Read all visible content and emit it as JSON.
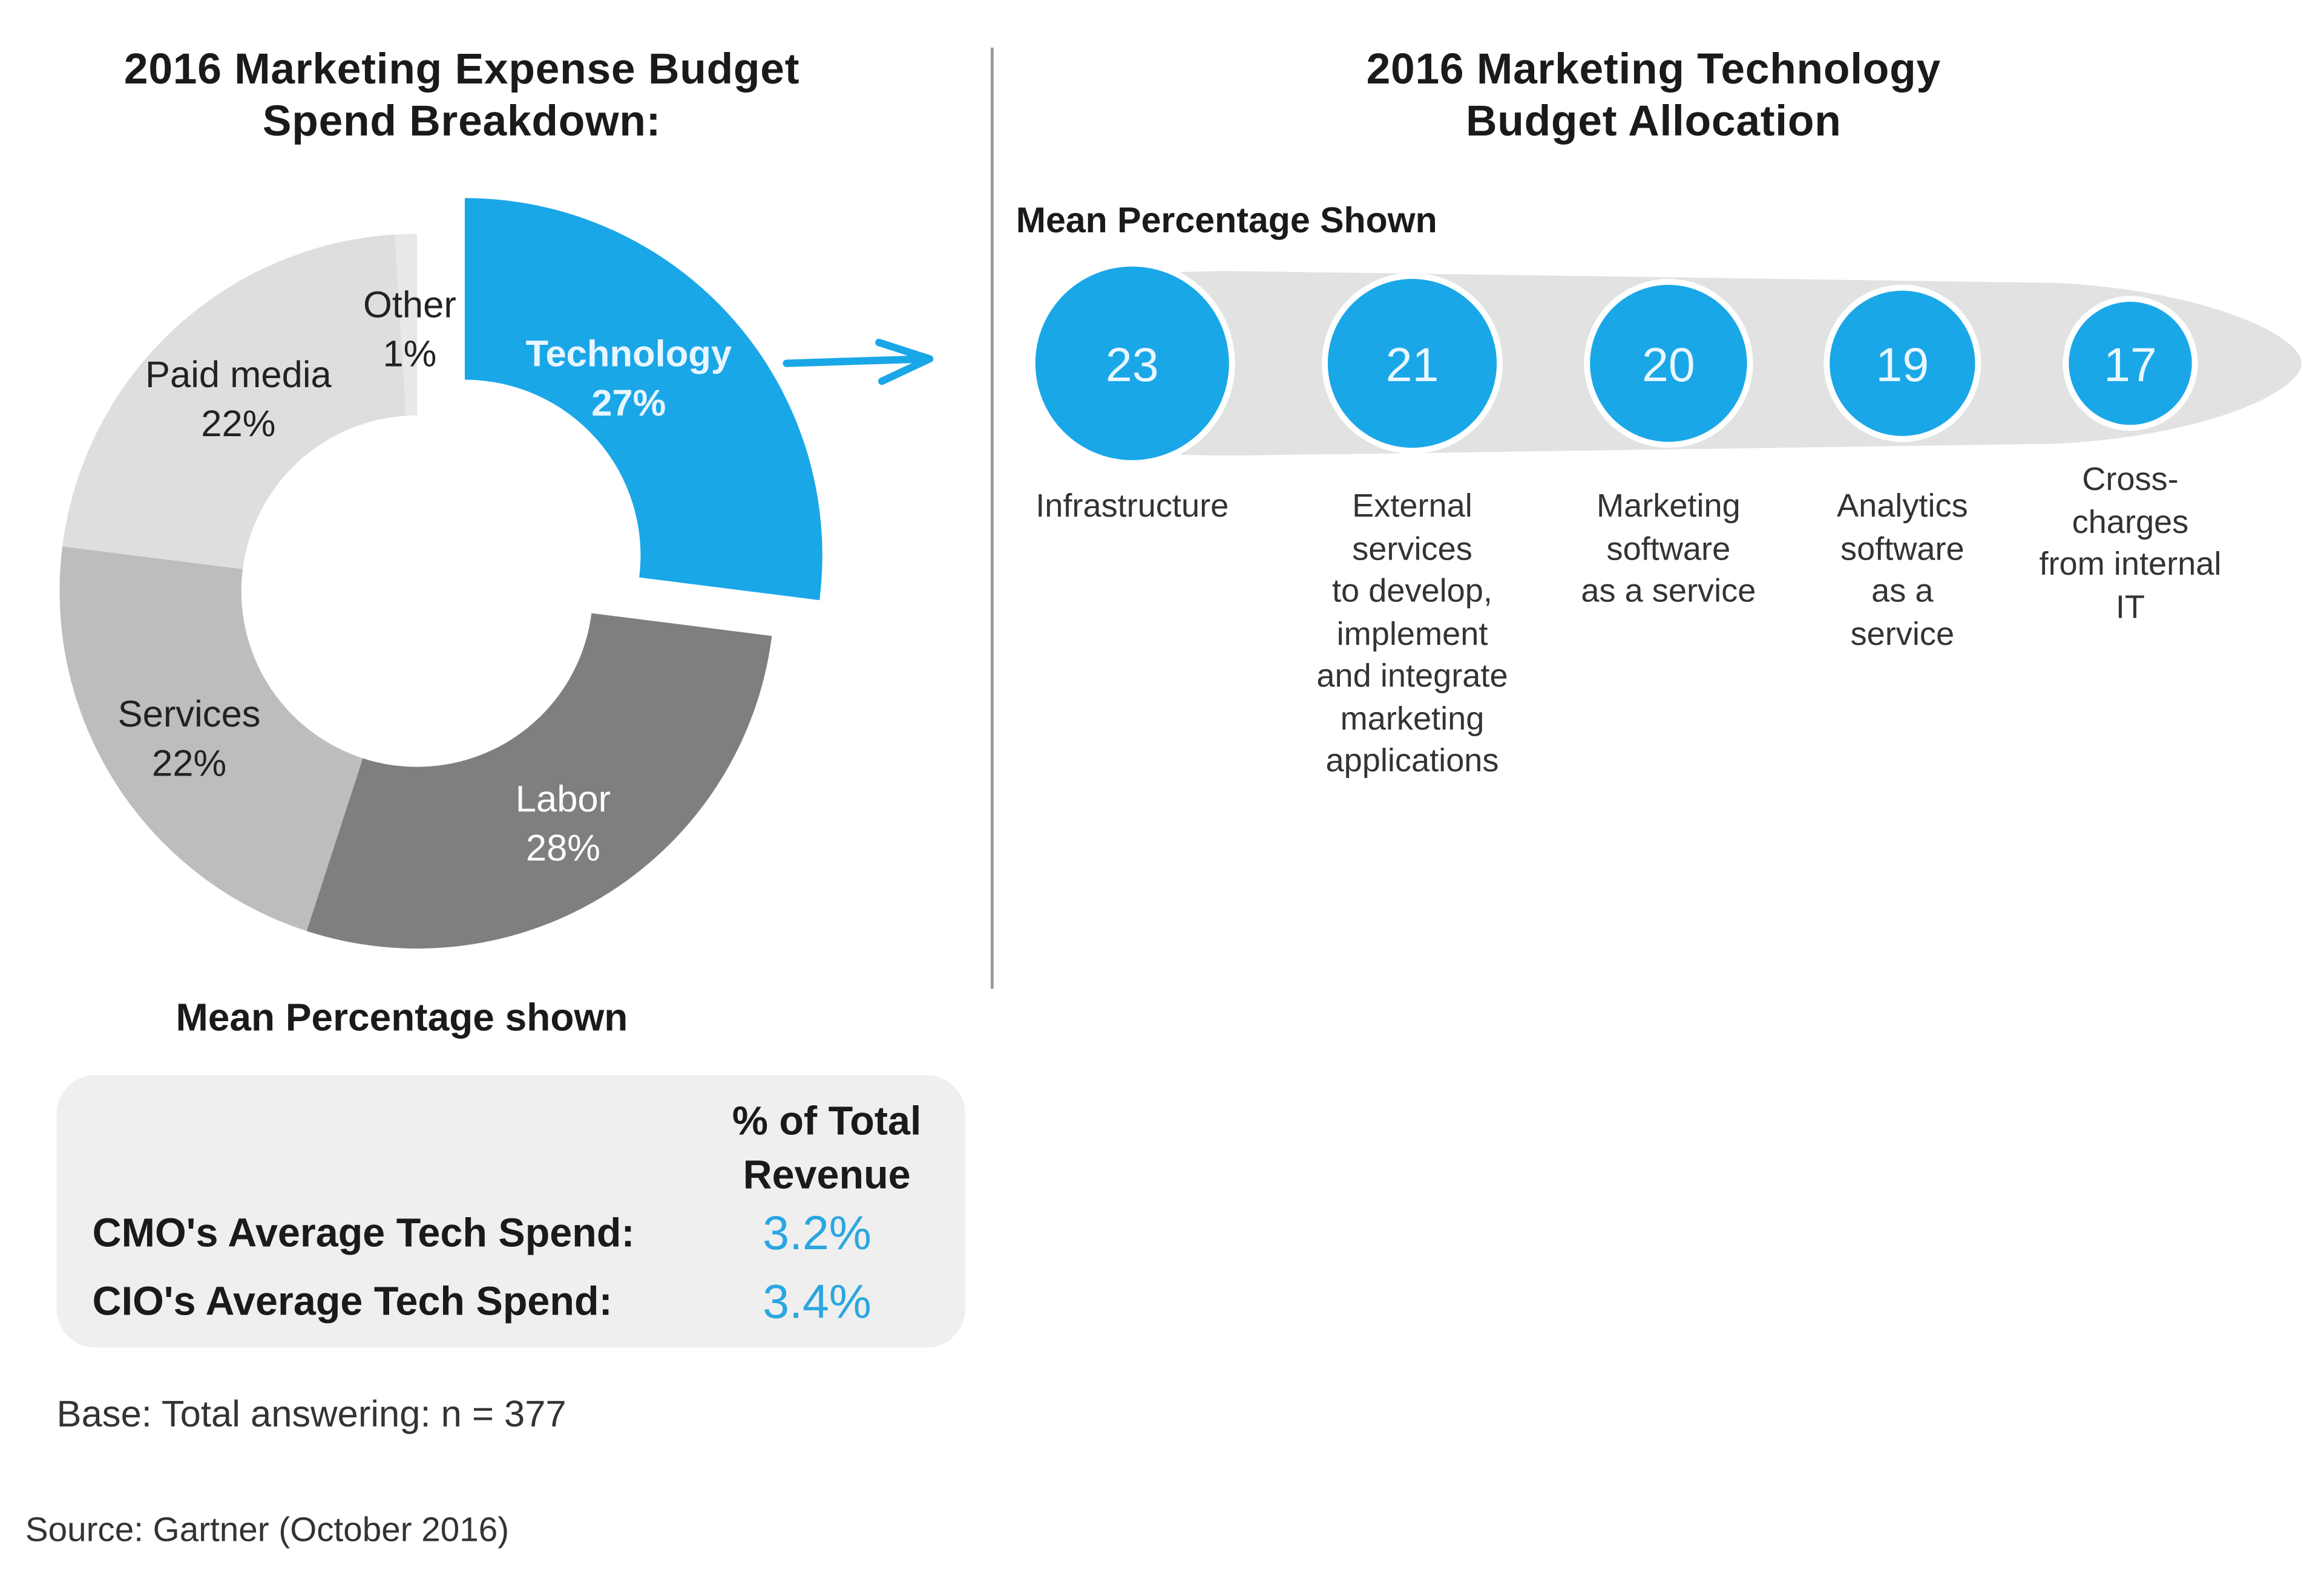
{
  "left": {
    "title_line1": "2016 Marketing Expense Budget",
    "title_line2": "Spend Breakdown:",
    "mean_label": "Mean Percentage shown",
    "table": {
      "header_line1": "% of Total",
      "header_line2": "Revenue",
      "rows": [
        {
          "label": "CMO's Average Tech Spend:",
          "value": "3.2%"
        },
        {
          "label": "CIO's Average Tech Spend:",
          "value": "3.4%"
        }
      ]
    },
    "base_note": "Base: Total answering:  n = 377"
  },
  "right": {
    "title_line1": "2016 Marketing Technology",
    "title_line2": "Budget Allocation",
    "mean_label": "Mean Percentage Shown"
  },
  "source": "Source: Gartner (October 2016)",
  "colors": {
    "accent": "#1aa7e8",
    "labor": "#7f7f7f",
    "services": "#bdbdbd",
    "paid_media": "#dedede",
    "other": "#e8e8e8",
    "band": "#e2e2e2"
  },
  "chart_data": [
    {
      "type": "pie",
      "variant": "donut",
      "title": "2016 Marketing Expense Budget Spend Breakdown:",
      "exploded": "Technology",
      "slices": [
        {
          "label": "Technology",
          "value": 27,
          "value_label": "27%",
          "color": "#1aa7e8"
        },
        {
          "label": "Labor",
          "value": 28,
          "value_label": "28%",
          "color": "#7f7f7f"
        },
        {
          "label": "Services",
          "value": 22,
          "value_label": "22%",
          "color": "#bdbdbd"
        },
        {
          "label": "Paid media",
          "value": 22,
          "value_label": "22%",
          "color": "#dedede"
        },
        {
          "label": "Other",
          "value": 1,
          "value_label": "1%",
          "color": "#e8e8e8"
        }
      ]
    },
    {
      "type": "bubble",
      "title": "2016 Marketing Technology Budget Allocation",
      "categories": [
        "Infrastructure",
        "External services to develop, implement and integrate marketing applications",
        "Marketing software as a service",
        "Analytics software as a service",
        "Cross-charges from internal IT"
      ],
      "category_lines": [
        [
          "Infrastructure"
        ],
        [
          "External",
          "services",
          "to develop,",
          "implement",
          "and integrate",
          "marketing",
          "applications"
        ],
        [
          "Marketing",
          "software",
          "as a service"
        ],
        [
          "Analytics",
          "software",
          "as a",
          "service"
        ],
        [
          "Cross-",
          "charges",
          "from internal",
          "IT"
        ]
      ],
      "values": [
        23,
        21,
        20,
        19,
        17
      ]
    }
  ]
}
